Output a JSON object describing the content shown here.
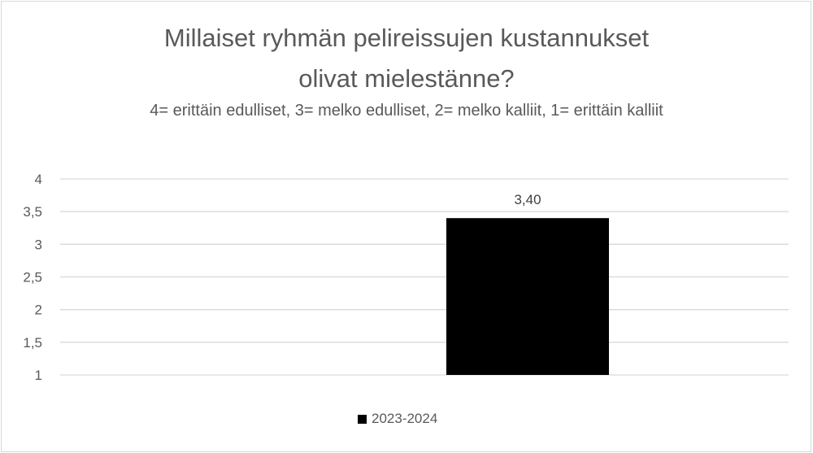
{
  "chart_data": {
    "type": "bar",
    "title": "Millaiset ryhmän pelireissujen kustannukset olivat mielestänne?",
    "title_lines": [
      "Millaiset ryhmän pelireissujen kustannukset",
      "olivat mielestänne?"
    ],
    "subtitle": "4= erittäin edulliset, 3= melko edulliset, 2= melko kalliit, 1= erittäin kalliit",
    "xlabel": "",
    "ylabel": "",
    "ylim": [
      1,
      4
    ],
    "yticks": [
      "1",
      "1,5",
      "2",
      "2,5",
      "3",
      "3,5",
      "4"
    ],
    "grid": true,
    "legend_position": "bottom",
    "series": [
      {
        "name": "2023-2024",
        "values": [
          3.4
        ],
        "labels": [
          "3,40"
        ],
        "color": "#000000"
      }
    ]
  }
}
